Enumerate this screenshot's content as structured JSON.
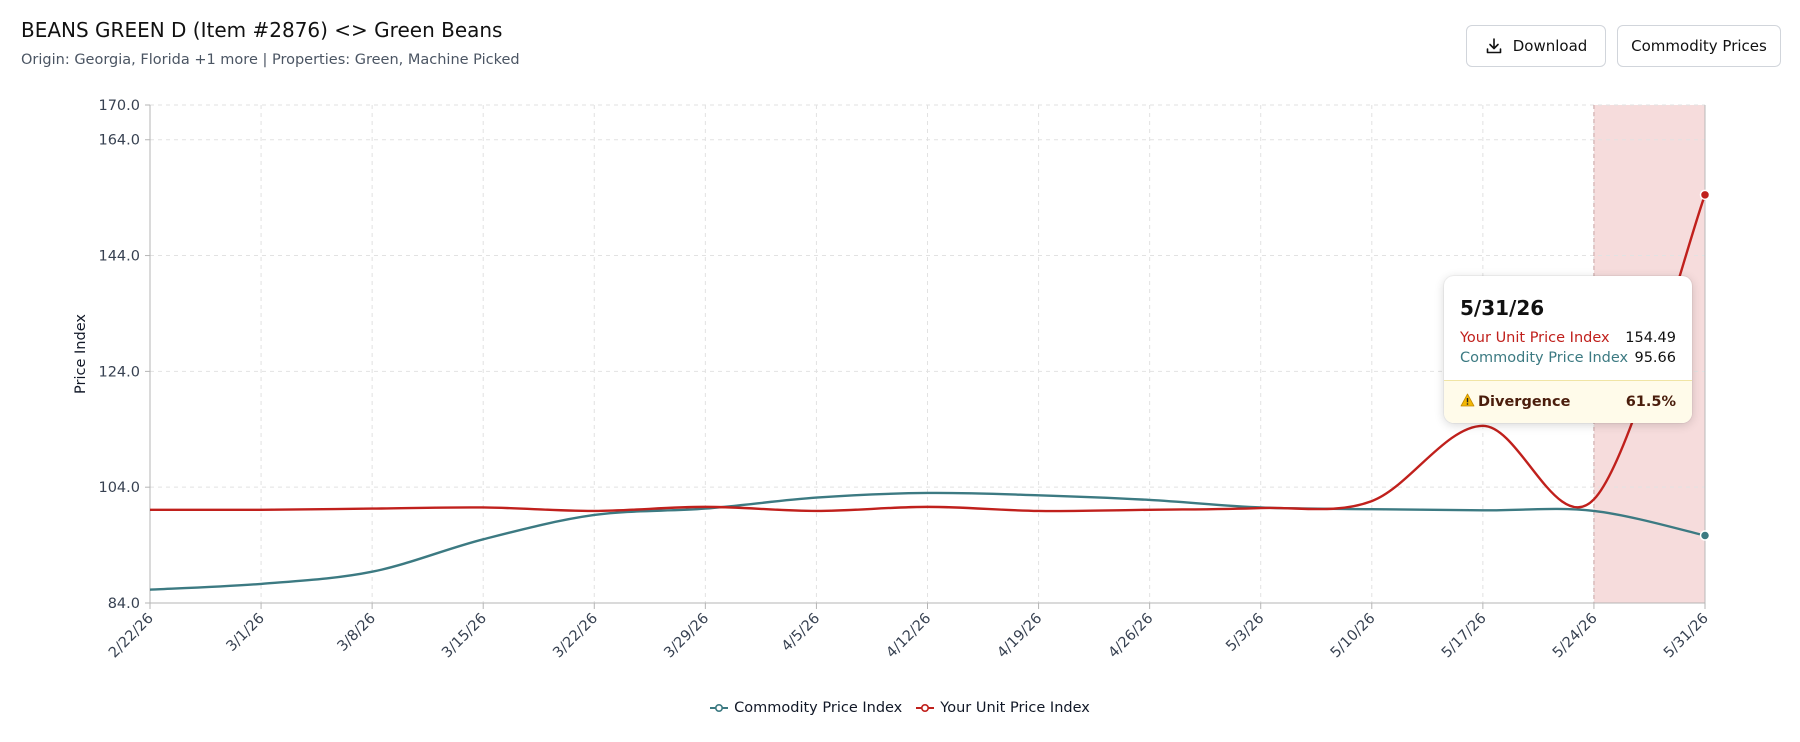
{
  "header": {
    "title": "BEANS GREEN D (Item #2876) <> Green Beans",
    "subtitle": "Origin: Georgia, Florida +1 more | Properties: Green, Machine Picked"
  },
  "actions": {
    "download_label": "Download",
    "commodity_label": "Commodity Prices"
  },
  "tooltip": {
    "date": "5/31/26",
    "rows": [
      {
        "label": "Your Unit Price Index",
        "value": "154.49"
      },
      {
        "label": "Commodity Price Index",
        "value": "95.66"
      }
    ],
    "divergence_label": "Divergence",
    "divergence_value": "61.5%"
  },
  "colors": {
    "commodity": "#3c7a82",
    "unit": "#c0201c",
    "highlight": "#f6dcdc"
  },
  "chart_data": {
    "type": "line",
    "x": [
      "2/22/26",
      "3/1/26",
      "3/8/26",
      "3/15/26",
      "3/22/26",
      "3/29/26",
      "4/5/26",
      "4/12/26",
      "4/19/26",
      "4/26/26",
      "5/3/26",
      "5/10/26",
      "5/17/26",
      "5/24/26",
      "5/31/26"
    ],
    "series": [
      {
        "name": "Commodity Price Index",
        "values": [
          86.3,
          87.3,
          89.4,
          95.0,
          99.2,
          100.3,
          102.2,
          103.0,
          102.6,
          101.8,
          100.5,
          100.2,
          100.0,
          99.9,
          95.66
        ]
      },
      {
        "name": "Your Unit Price Index",
        "values": [
          100.1,
          100.1,
          100.3,
          100.5,
          99.9,
          100.6,
          99.9,
          100.6,
          99.9,
          100.1,
          100.4,
          101.6,
          114.6,
          101.9,
          154.49
        ]
      }
    ],
    "ylabel": "Price Index",
    "xlabel": "",
    "ylim": [
      84,
      170
    ],
    "yticks": [
      "84.0",
      "104.0",
      "124.0",
      "144.0",
      "164.0",
      "170.0"
    ],
    "ytick_values": [
      84,
      104,
      124,
      144,
      164,
      170
    ],
    "highlight_range": [
      "5/24/26",
      "5/31/26"
    ],
    "legend": [
      "Commodity Price Index",
      "Your Unit Price Index"
    ],
    "legend_position": "bottom",
    "grid": true
  }
}
